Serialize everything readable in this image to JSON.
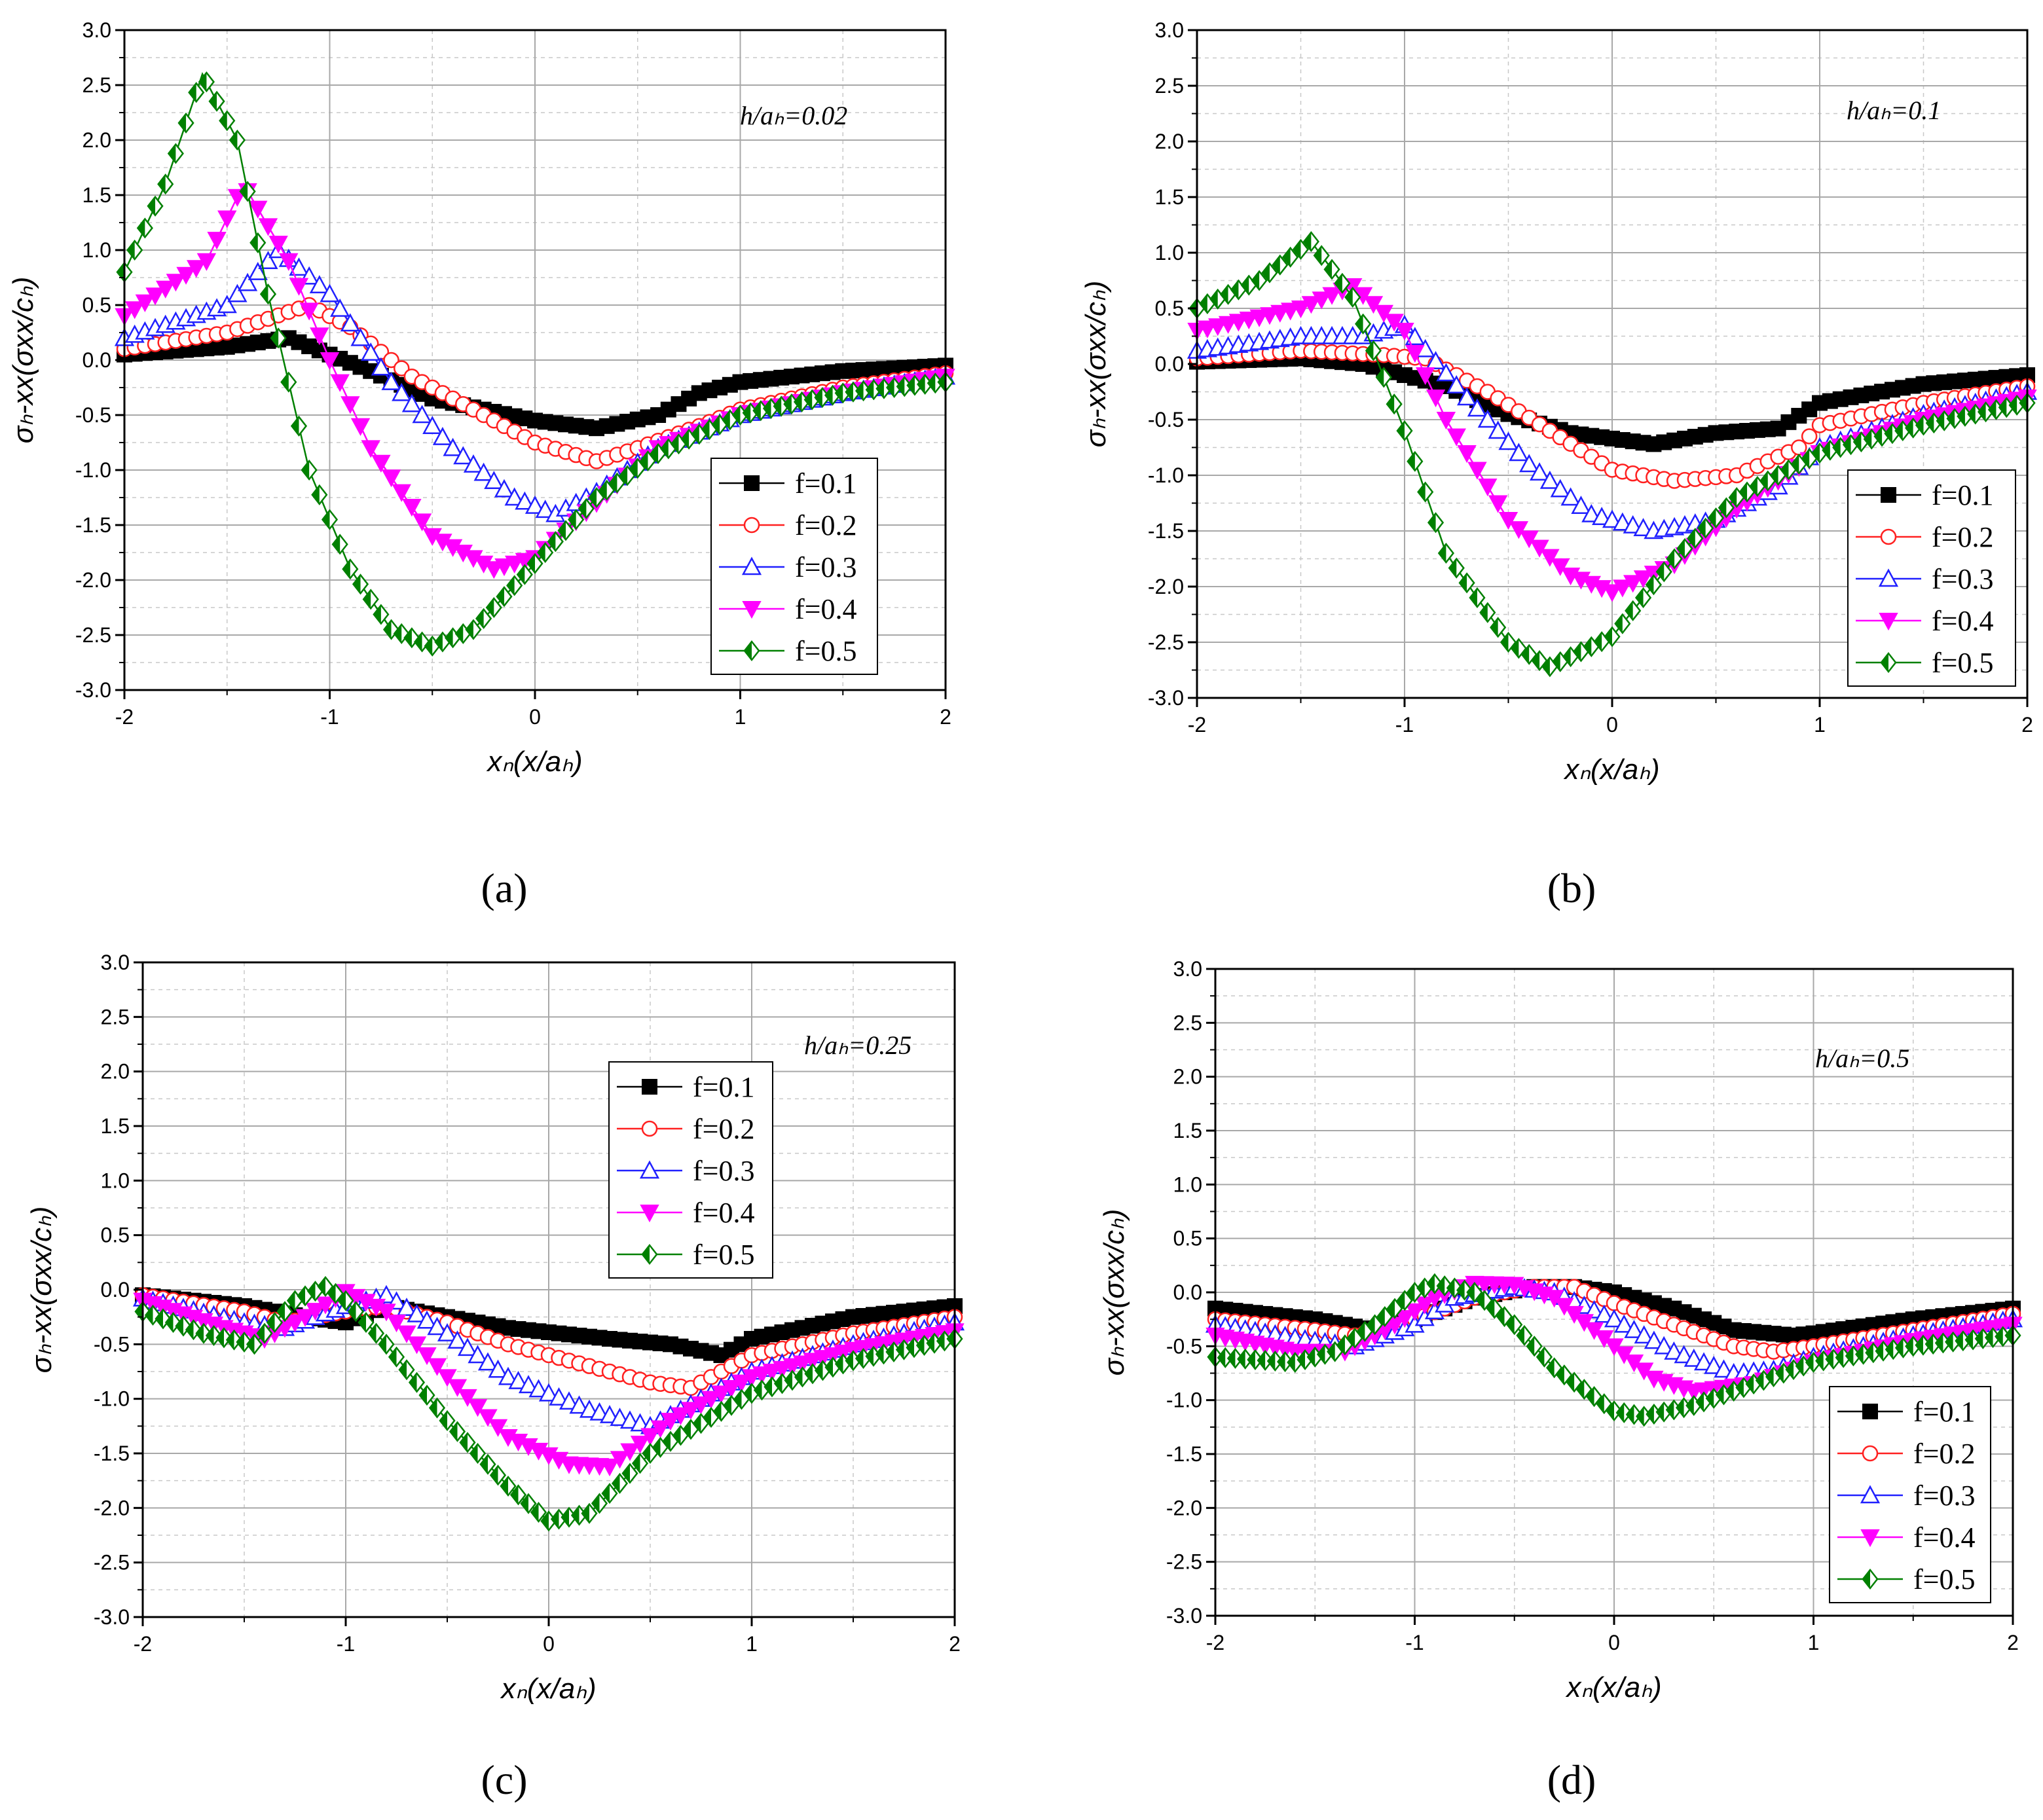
{
  "figure_title": "",
  "series_styles": [
    {
      "name_prefix": "f",
      "color": "#000000",
      "marker": "square",
      "filled": true
    },
    {
      "name_prefix": "f",
      "color": "#ff2020",
      "marker": "circle",
      "filled": false
    },
    {
      "name_prefix": "f",
      "color": "#2020ff",
      "marker": "triangle-up",
      "filled": false
    },
    {
      "name_prefix": "f",
      "color": "#ff00ff",
      "marker": "triangle-down",
      "filled": "bi"
    },
    {
      "name_prefix": "f",
      "color": "#008000",
      "marker": "diamond",
      "filled": "half"
    }
  ],
  "chart_data": [
    {
      "type": "line",
      "panel_label": "(a)",
      "annotation": "h/aₕ=0.02",
      "xlabel": "xₙ(x/aₕ)",
      "ylabel": "σₕ-xx(σxx/cₕ)",
      "xlim": [
        -2,
        2
      ],
      "ylim": [
        -3.0,
        3.0
      ],
      "xticks": [
        "-2",
        "-1",
        "0",
        "1",
        "2"
      ],
      "yticks": [
        "-3.0",
        "-2.5",
        "-2.0",
        "-1.5",
        "-1.0",
        "-0.5",
        "0.0",
        "0.5",
        "1.0",
        "1.5",
        "2.0",
        "2.5",
        "3.0"
      ],
      "legend": [
        "f=0.1",
        "f=0.2",
        "f=0.3",
        "f=0.4",
        "f=0.5"
      ],
      "series": [
        {
          "name": "f=0.1",
          "x": [
            -2,
            -1.5,
            -1.2,
            -1.0,
            -0.8,
            -0.5,
            0,
            0.3,
            0.6,
            0.8,
            1.0,
            1.5,
            2.0
          ],
          "y": [
            0.05,
            0.12,
            0.2,
            0.05,
            -0.1,
            -0.35,
            -0.55,
            -0.62,
            -0.5,
            -0.3,
            -0.2,
            -0.1,
            -0.05
          ]
        },
        {
          "name": "f=0.2",
          "x": [
            -2,
            -1.5,
            -1.1,
            -0.9,
            -0.6,
            -0.3,
            0,
            0.3,
            0.5,
            0.8,
            1.0,
            1.5,
            2.0
          ],
          "y": [
            0.1,
            0.25,
            0.5,
            0.3,
            -0.15,
            -0.45,
            -0.75,
            -0.92,
            -0.8,
            -0.6,
            -0.45,
            -0.25,
            -0.12
          ]
        },
        {
          "name": "f=0.3",
          "x": [
            -2,
            -1.5,
            -1.25,
            -1.0,
            -0.7,
            -0.4,
            -0.1,
            0.1,
            0.3,
            0.6,
            1.0,
            1.5,
            2.0
          ],
          "y": [
            0.2,
            0.5,
            1.0,
            0.6,
            -0.2,
            -0.8,
            -1.25,
            -1.4,
            -1.2,
            -0.8,
            -0.5,
            -0.3,
            -0.15
          ]
        },
        {
          "name": "f=0.4",
          "x": [
            -2,
            -1.6,
            -1.42,
            -1.2,
            -1.0,
            -0.8,
            -0.5,
            -0.2,
            0,
            0.3,
            0.6,
            1.0,
            1.5,
            2.0
          ],
          "y": [
            0.4,
            0.9,
            1.6,
            0.9,
            0.0,
            -0.8,
            -1.6,
            -1.9,
            -1.8,
            -1.3,
            -0.8,
            -0.5,
            -0.3,
            -0.15
          ]
        },
        {
          "name": "f=0.5",
          "x": [
            -2,
            -1.8,
            -1.62,
            -1.45,
            -1.3,
            -1.1,
            -0.9,
            -0.7,
            -0.5,
            -0.3,
            0,
            0.3,
            0.6,
            1.0,
            1.5,
            2.0
          ],
          "y": [
            0.8,
            1.6,
            2.6,
            2.0,
            0.6,
            -1.0,
            -1.9,
            -2.45,
            -2.6,
            -2.45,
            -1.85,
            -1.25,
            -0.85,
            -0.5,
            -0.3,
            -0.2
          ]
        }
      ]
    },
    {
      "type": "line",
      "panel_label": "(b)",
      "annotation": "h/aₕ=0.1",
      "xlabel": "xₙ(x/aₕ)",
      "ylabel": "σₕ-xx(σxx/cₕ)",
      "xlim": [
        -2,
        2
      ],
      "ylim": [
        -3.0,
        3.0
      ],
      "xticks": [
        "-2",
        "-1",
        "0",
        "1",
        "2"
      ],
      "yticks": [
        "-3.0",
        "-2.5",
        "-2.0",
        "-1.5",
        "-1.0",
        "-0.5",
        "0.0",
        "0.5",
        "1.0",
        "1.5",
        "2.0",
        "2.5",
        "3.0"
      ],
      "legend": [
        "f=0.1",
        "f=0.2",
        "f=0.3",
        "f=0.4",
        "f=0.5"
      ],
      "series": [
        {
          "name": "f=0.1",
          "x": [
            -2,
            -1.5,
            -1.2,
            -1.0,
            -0.8,
            -0.5,
            -0.2,
            0.2,
            0.5,
            0.8,
            1.0,
            1.5,
            2.0
          ],
          "y": [
            0.02,
            0.05,
            0.0,
            -0.1,
            -0.2,
            -0.45,
            -0.62,
            -0.72,
            -0.62,
            -0.58,
            -0.35,
            -0.18,
            -0.1
          ]
        },
        {
          "name": "f=0.2",
          "x": [
            -2,
            -1.5,
            -1.1,
            -0.9,
            -0.6,
            -0.3,
            0,
            0.3,
            0.6,
            0.9,
            1.0,
            1.5,
            2.0
          ],
          "y": [
            0.05,
            0.12,
            0.08,
            0.05,
            -0.25,
            -0.6,
            -0.95,
            -1.05,
            -1.0,
            -0.75,
            -0.55,
            -0.35,
            -0.2
          ]
        },
        {
          "name": "f=0.3",
          "x": [
            -2,
            -1.5,
            -1.2,
            -1.0,
            -0.7,
            -0.4,
            -0.1,
            0.2,
            0.5,
            0.8,
            1.0,
            1.5,
            2.0
          ],
          "y": [
            0.12,
            0.25,
            0.25,
            0.35,
            -0.3,
            -0.9,
            -1.35,
            -1.5,
            -1.4,
            -1.1,
            -0.75,
            -0.45,
            -0.25
          ]
        },
        {
          "name": "f=0.4",
          "x": [
            -2,
            -1.5,
            -1.25,
            -1.0,
            -0.8,
            -0.5,
            -0.2,
            0,
            0.3,
            0.6,
            1.0,
            1.5,
            2.0
          ],
          "y": [
            0.3,
            0.5,
            0.7,
            0.3,
            -0.5,
            -1.4,
            -1.9,
            -2.05,
            -1.8,
            -1.3,
            -0.8,
            -0.5,
            -0.3
          ]
        },
        {
          "name": "f=0.5",
          "x": [
            -2,
            -1.7,
            -1.45,
            -1.25,
            -1.0,
            -0.8,
            -0.5,
            -0.3,
            0,
            0.3,
            0.6,
            1.0,
            1.5,
            2.0
          ],
          "y": [
            0.5,
            0.75,
            1.1,
            0.6,
            -0.6,
            -1.7,
            -2.5,
            -2.72,
            -2.45,
            -1.75,
            -1.2,
            -0.8,
            -0.55,
            -0.35
          ]
        }
      ]
    },
    {
      "type": "line",
      "panel_label": "(c)",
      "annotation": "h/aₕ=0.25",
      "xlabel": "xₙ(x/aₕ)",
      "ylabel": "σₕ-xx(σxx/cₕ)",
      "xlim": [
        -2,
        2
      ],
      "ylim": [
        -3.0,
        3.0
      ],
      "xticks": [
        "-2",
        "-1",
        "0",
        "1",
        "2"
      ],
      "yticks": [
        "-3.0",
        "-2.5",
        "-2.0",
        "-1.5",
        "-1.0",
        "-0.5",
        "0.0",
        "0.5",
        "1.0",
        "1.5",
        "2.0",
        "2.5",
        "3.0"
      ],
      "legend": [
        "f=0.1",
        "f=0.2",
        "f=0.3",
        "f=0.4",
        "f=0.5"
      ],
      "series": [
        {
          "name": "f=0.1",
          "x": [
            -2,
            -1.5,
            -1.2,
            -1.0,
            -0.8,
            -0.5,
            -0.2,
            0.3,
            0.6,
            0.85,
            1.0,
            1.5,
            2.0
          ],
          "y": [
            -0.05,
            -0.15,
            -0.25,
            -0.3,
            -0.15,
            -0.25,
            -0.35,
            -0.45,
            -0.5,
            -0.6,
            -0.45,
            -0.25,
            -0.15
          ]
        },
        {
          "name": "f=0.2",
          "x": [
            -2,
            -1.5,
            -1.3,
            -1.0,
            -0.8,
            -0.5,
            -0.2,
            0.2,
            0.5,
            0.7,
            0.9,
            1.0,
            1.5,
            2.0
          ],
          "y": [
            -0.05,
            -0.2,
            -0.3,
            -0.2,
            -0.15,
            -0.3,
            -0.5,
            -0.7,
            -0.85,
            -0.9,
            -0.7,
            -0.6,
            -0.4,
            -0.25
          ]
        },
        {
          "name": "f=0.3",
          "x": [
            -2,
            -1.5,
            -1.3,
            -1.0,
            -0.8,
            -0.5,
            -0.2,
            0.2,
            0.5,
            0.7,
            1.0,
            1.5,
            2.0
          ],
          "y": [
            -0.08,
            -0.3,
            -0.35,
            -0.15,
            -0.05,
            -0.4,
            -0.8,
            -1.1,
            -1.25,
            -1.05,
            -0.75,
            -0.5,
            -0.3
          ]
        },
        {
          "name": "f=0.4",
          "x": [
            -2,
            -1.6,
            -1.4,
            -1.2,
            -1.0,
            -0.8,
            -0.5,
            -0.2,
            0.1,
            0.3,
            0.6,
            1.0,
            1.5,
            2.0
          ],
          "y": [
            -0.1,
            -0.35,
            -0.45,
            -0.25,
            -0.02,
            -0.2,
            -0.8,
            -1.35,
            -1.6,
            -1.62,
            -1.2,
            -0.8,
            -0.55,
            -0.38
          ]
        },
        {
          "name": "f=0.5",
          "x": [
            -2,
            -1.7,
            -1.45,
            -1.25,
            -1.1,
            -1.0,
            -0.8,
            -0.5,
            -0.2,
            0.0,
            0.2,
            0.5,
            1.0,
            1.5,
            2.0
          ],
          "y": [
            -0.2,
            -0.4,
            -0.5,
            -0.1,
            0.03,
            -0.1,
            -0.5,
            -1.2,
            -1.8,
            -2.12,
            -2.05,
            -1.5,
            -0.95,
            -0.65,
            -0.45
          ]
        }
      ]
    },
    {
      "type": "line",
      "panel_label": "(d)",
      "annotation": "h/aₕ=0.5",
      "xlabel": "xₙ(x/aₕ)",
      "ylabel": "σₕ-xx(σxx/cₕ)",
      "xlim": [
        -2,
        2
      ],
      "ylim": [
        -3.0,
        3.0
      ],
      "xticks": [
        "-2",
        "-1",
        "0",
        "1",
        "2"
      ],
      "yticks": [
        "-3.0",
        "-2.5",
        "-2.0",
        "-1.5",
        "-1.0",
        "-0.5",
        "0.0",
        "0.5",
        "1.0",
        "1.5",
        "2.0",
        "2.5",
        "3.0"
      ],
      "legend": [
        "f=0.1",
        "f=0.2",
        "f=0.3",
        "f=0.4",
        "f=0.5"
      ],
      "series": [
        {
          "name": "f=0.1",
          "x": [
            -2,
            -1.5,
            -1.2,
            -1.0,
            -0.7,
            -0.4,
            -0.2,
            0,
            0.3,
            0.6,
            0.9,
            1.0,
            1.5,
            2.0
          ],
          "y": [
            -0.15,
            -0.25,
            -0.35,
            -0.25,
            -0.05,
            0.05,
            0.05,
            0.0,
            -0.15,
            -0.35,
            -0.4,
            -0.38,
            -0.25,
            -0.15
          ]
        },
        {
          "name": "f=0.2",
          "x": [
            -2,
            -1.5,
            -1.3,
            -1.0,
            -0.7,
            -0.4,
            -0.2,
            0,
            0.3,
            0.6,
            0.8,
            1.0,
            1.5,
            2.0
          ],
          "y": [
            -0.25,
            -0.35,
            -0.4,
            -0.25,
            -0.05,
            0.05,
            0.05,
            -0.1,
            -0.3,
            -0.5,
            -0.55,
            -0.5,
            -0.35,
            -0.2
          ]
        },
        {
          "name": "f=0.3",
          "x": [
            -2,
            -1.5,
            -1.3,
            -1.0,
            -0.8,
            -0.5,
            -0.3,
            0,
            0.3,
            0.6,
            0.8,
            1.0,
            1.5,
            2.0
          ],
          "y": [
            -0.3,
            -0.45,
            -0.5,
            -0.3,
            -0.05,
            0.05,
            0.0,
            -0.25,
            -0.55,
            -0.75,
            -0.72,
            -0.6,
            -0.4,
            -0.25
          ]
        },
        {
          "name": "f=0.4",
          "x": [
            -2,
            -1.6,
            -1.35,
            -1.1,
            -0.9,
            -0.7,
            -0.5,
            -0.3,
            0,
            0.2,
            0.4,
            0.7,
            1.0,
            1.5,
            2.0
          ],
          "y": [
            -0.4,
            -0.55,
            -0.55,
            -0.3,
            -0.05,
            0.08,
            0.07,
            -0.05,
            -0.5,
            -0.8,
            -0.92,
            -0.85,
            -0.65,
            -0.45,
            -0.3
          ]
        },
        {
          "name": "f=0.5",
          "x": [
            -2,
            -1.6,
            -1.4,
            -1.2,
            -1.0,
            -0.9,
            -0.7,
            -0.5,
            -0.3,
            0,
            0.15,
            0.4,
            0.7,
            1.0,
            1.5,
            2.0
          ],
          "y": [
            -0.6,
            -0.65,
            -0.55,
            -0.3,
            0.0,
            0.08,
            0.0,
            -0.3,
            -0.7,
            -1.1,
            -1.15,
            -1.05,
            -0.85,
            -0.65,
            -0.5,
            -0.4
          ]
        }
      ]
    }
  ]
}
